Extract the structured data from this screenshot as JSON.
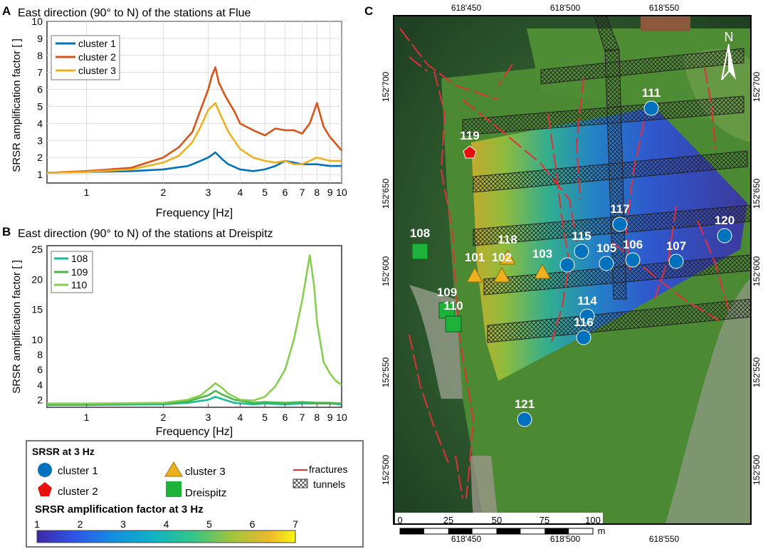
{
  "panel_a": {
    "letter": "A",
    "title": "East direction (90° to N) of the stations at Flue",
    "ylabel": "SRSR amplification factor [ ]",
    "xlabel": "Frequency [Hz]",
    "yticks": [
      "1",
      "2",
      "3",
      "4",
      "5",
      "6",
      "7",
      "8",
      "9",
      "10"
    ],
    "xticks": [
      "1",
      "2",
      "3",
      "4",
      "5",
      "6",
      "7",
      "8",
      "9",
      "10"
    ],
    "legend": [
      "cluster 1",
      "cluster 2",
      "cluster 3"
    ]
  },
  "panel_b": {
    "letter": "B",
    "title": "East direction (90° to N) of the stations at Dreispitz",
    "ylabel": "SRSR amplification factor [ ]",
    "xlabel": "Frequency [Hz]",
    "yticks": [
      "2",
      "4",
      "6",
      "8",
      "10",
      "15",
      "20",
      "25"
    ],
    "xticks": [
      "1",
      "2",
      "3",
      "4",
      "5",
      "6",
      "7",
      "8",
      "9",
      "10"
    ],
    "legend": [
      "108",
      "109",
      "110"
    ]
  },
  "legend_box": {
    "title": "SRSR at 3 Hz",
    "cluster1": "cluster 1",
    "cluster2": "cluster 2",
    "cluster3": "cluster 3",
    "dreispitz": "Dreispitz",
    "fractures": "fractures",
    "tunnels": "tunnels",
    "colorbar_title": "SRSR amplification factor at 3 Hz",
    "colorbar_ticks": [
      "1",
      "2",
      "3",
      "4",
      "5",
      "6",
      "7"
    ]
  },
  "panel_c": {
    "letter": "C",
    "top_ticks": [
      "618'450",
      "618'500",
      "618'550"
    ],
    "bottom_ticks": [
      "618'450",
      "618'500",
      "618'550"
    ],
    "left_ticks": [
      "152'700",
      "152'650",
      "152'600",
      "152'550",
      "152'500"
    ],
    "right_ticks": [
      "152'700",
      "152'650",
      "152'600",
      "152'550",
      "152'500"
    ],
    "north": "N",
    "scalebar": [
      "0",
      "25",
      "50",
      "75",
      "100",
      "m"
    ],
    "stations": [
      {
        "id": "111",
        "cls": "c1"
      },
      {
        "id": "119",
        "cls": "c2"
      },
      {
        "id": "117",
        "cls": "c1"
      },
      {
        "id": "120",
        "cls": "c1"
      },
      {
        "id": "108",
        "cls": "d"
      },
      {
        "id": "118",
        "cls": "c3"
      },
      {
        "id": "115",
        "cls": "c1"
      },
      {
        "id": "105",
        "cls": "c1"
      },
      {
        "id": "106",
        "cls": "c1"
      },
      {
        "id": "107",
        "cls": "c1"
      },
      {
        "id": "101",
        "cls": "c3"
      },
      {
        "id": "102",
        "cls": "c3"
      },
      {
        "id": "103",
        "cls": "c3"
      },
      {
        "id": "109",
        "cls": "d"
      },
      {
        "id": "114",
        "cls": "c1"
      },
      {
        "id": "110",
        "cls": "d"
      },
      {
        "id": "116",
        "cls": "c1"
      },
      {
        "id": "121",
        "cls": "c1"
      },
      {
        "id": "",
        "cls": "c1"
      }
    ]
  },
  "colors": {
    "c1": "#0072BD",
    "c2": "#D95319",
    "c3": "#EDB120",
    "g1": "#1ABC9C",
    "g2": "#4CB648",
    "g3": "#86CF4E",
    "fracture": "#E0303A",
    "square": "#1DB23A"
  },
  "chart_data": [
    {
      "type": "line",
      "title": "East direction (90° to N) of the stations at Flue",
      "xlabel": "Frequency [Hz]",
      "ylabel": "SRSR amplification factor [ ]",
      "xscale": "log",
      "xlim": [
        0.7,
        10
      ],
      "ylim": [
        0.5,
        10
      ],
      "grid": true,
      "legend": "top-left",
      "series": [
        {
          "name": "cluster 1",
          "color": "#0072BD",
          "x": [
            0.7,
            1,
            1.5,
            2,
            2.5,
            2.8,
            3,
            3.2,
            3.4,
            3.6,
            4,
            4.5,
            5,
            5.5,
            6,
            6.5,
            7,
            8,
            9,
            10
          ],
          "y": [
            1.1,
            1.15,
            1.2,
            1.3,
            1.5,
            1.8,
            2.0,
            2.3,
            1.9,
            1.6,
            1.3,
            1.2,
            1.3,
            1.5,
            1.8,
            1.7,
            1.6,
            1.6,
            1.5,
            1.5
          ]
        },
        {
          "name": "cluster 2",
          "color": "#D95319",
          "x": [
            0.7,
            1,
            1.5,
            2,
            2.3,
            2.6,
            2.8,
            3,
            3.1,
            3.2,
            3.3,
            3.5,
            3.8,
            4,
            4.5,
            5,
            5.5,
            6,
            6.5,
            7,
            7.5,
            8,
            8.5,
            9,
            9.5,
            10
          ],
          "y": [
            1.1,
            1.2,
            1.4,
            2.0,
            2.6,
            3.5,
            4.8,
            6.0,
            6.8,
            7.3,
            6.4,
            5.6,
            4.7,
            4.0,
            3.6,
            3.3,
            3.7,
            3.6,
            3.6,
            3.4,
            4.0,
            5.2,
            3.8,
            3.2,
            2.8,
            2.4
          ]
        },
        {
          "name": "cluster 3",
          "color": "#EDB120",
          "x": [
            0.7,
            1,
            1.5,
            2,
            2.3,
            2.6,
            2.8,
            3,
            3.2,
            3.4,
            3.6,
            4,
            4.5,
            5,
            5.5,
            6,
            6.5,
            7,
            8,
            9,
            10
          ],
          "y": [
            1.1,
            1.15,
            1.3,
            1.7,
            2.1,
            2.9,
            3.8,
            4.8,
            5.2,
            4.3,
            3.5,
            2.5,
            2.0,
            1.8,
            1.7,
            1.8,
            1.6,
            1.6,
            2.0,
            1.8,
            1.8
          ]
        }
      ]
    },
    {
      "type": "line",
      "title": "East direction (90° to N) of the stations at Dreispitz",
      "xlabel": "Frequency [Hz]",
      "ylabel": "SRSR amplification factor [ ]",
      "xscale": "log",
      "xlim": [
        0.7,
        10
      ],
      "ylim": [
        1,
        25
      ],
      "grid": false,
      "legend": "top-left",
      "series": [
        {
          "name": "108",
          "color": "#1ABC9C",
          "x": [
            0.7,
            1,
            2,
            2.5,
            3,
            3.2,
            3.4,
            3.8,
            4.5,
            5,
            6,
            7,
            8,
            9,
            10
          ],
          "y": [
            1.3,
            1.3,
            1.4,
            1.6,
            2.0,
            2.4,
            2.1,
            1.6,
            1.4,
            1.5,
            1.4,
            1.5,
            1.5,
            1.5,
            1.4
          ]
        },
        {
          "name": "109",
          "color": "#4CB648",
          "x": [
            0.7,
            1,
            2,
            2.5,
            3,
            3.2,
            3.4,
            3.8,
            4.5,
            5,
            6,
            7,
            8,
            9,
            10
          ],
          "y": [
            1.4,
            1.4,
            1.5,
            1.8,
            2.6,
            3.2,
            2.7,
            2.0,
            1.6,
            1.7,
            1.6,
            1.7,
            1.6,
            1.6,
            1.5
          ]
        },
        {
          "name": "110",
          "color": "#86CF4E",
          "x": [
            0.7,
            1,
            2,
            2.5,
            2.8,
            3,
            3.2,
            3.4,
            3.6,
            4,
            4.5,
            5,
            5.5,
            6,
            6.5,
            7,
            7.3,
            7.5,
            7.8,
            8,
            8.5,
            9,
            9.5,
            10
          ],
          "y": [
            1.5,
            1.5,
            1.6,
            2.0,
            2.6,
            3.4,
            4.2,
            3.6,
            2.8,
            2.0,
            1.9,
            2.4,
            3.8,
            6.0,
            10.0,
            16.5,
            21.0,
            24.0,
            19.0,
            13.0,
            7.0,
            5.5,
            4.5,
            4.0
          ]
        }
      ]
    }
  ]
}
